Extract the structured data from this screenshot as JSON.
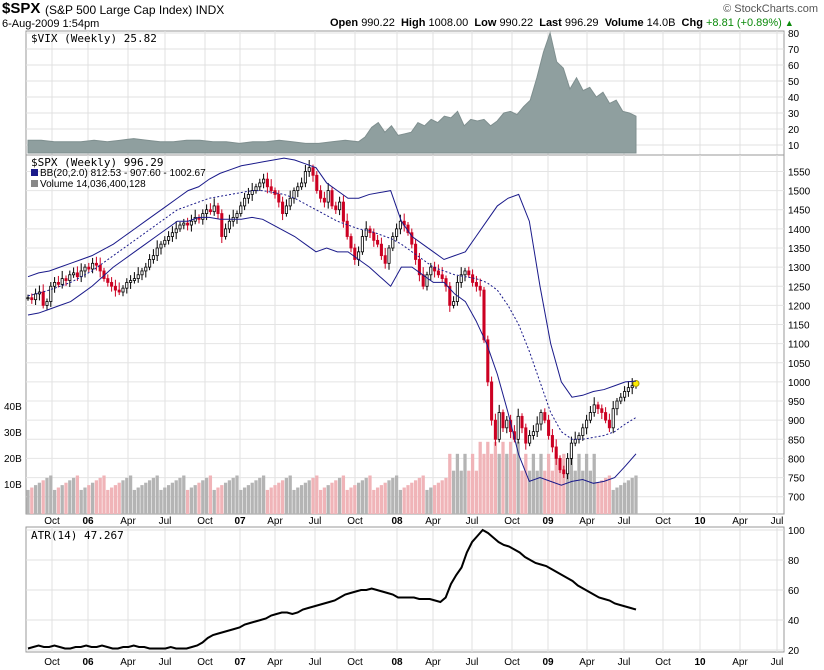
{
  "header": {
    "ticker": "$SPX",
    "name": "(S&P 500 Large Cap Index)",
    "exchange": "INDX",
    "datetime": "6-Aug-2009 1:54pm",
    "logo": "© StockCharts.com",
    "open_label": "Open",
    "open": "990.22",
    "high_label": "High",
    "high": "1008.00",
    "low_label": "Low",
    "low": "990.22",
    "last_label": "Last",
    "last": "996.29",
    "volume_label": "Volume",
    "volume": "14.0B",
    "chg_label": "Chg",
    "chg": "+8.81 (+0.89%)"
  },
  "legends": {
    "vix": "$VIX (Weekly) 25.82",
    "spx": "$SPX (Weekly) 996.29",
    "bb": "BB(20,2.0) 812.53 - 907.60 - 1002.67",
    "vol": "Volume 14,036,400,128",
    "atr": "ATR(14) 47.267"
  },
  "colors": {
    "vix_fill": "#8f9f9f",
    "up_candle": "#000000",
    "down_candle": "#cc0022",
    "bb_band": "#1a1a8a",
    "vol_up": "#b4b4b4",
    "vol_down": "#f0b4b8",
    "grid": "#d9d9d9"
  },
  "chart_data": [
    {
      "type": "area",
      "title": "$VIX (Weekly) 25.82",
      "ylim": [
        5,
        80
      ],
      "yticks": [
        10,
        20,
        30,
        40,
        50,
        60,
        70,
        80
      ],
      "x": [
        0,
        4,
        8,
        12,
        16,
        20,
        24,
        28,
        32,
        36,
        40,
        44,
        48,
        52,
        56,
        60,
        64,
        68,
        72,
        76,
        80,
        84,
        88,
        92,
        96,
        100,
        102,
        104,
        106,
        108,
        110,
        112,
        114,
        116,
        118,
        120,
        122,
        124,
        126,
        128,
        130,
        132,
        134,
        136,
        138,
        140,
        142,
        144,
        146,
        148,
        150,
        152,
        154,
        156,
        158,
        160,
        162,
        164,
        166,
        168,
        170,
        172,
        174,
        176,
        178,
        180,
        182,
        184
      ],
      "values": [
        13,
        13,
        12,
        12,
        12,
        13,
        12,
        13,
        14,
        13,
        12,
        12,
        13,
        13,
        12,
        12,
        11,
        12,
        12,
        13,
        12,
        11,
        11,
        12,
        13,
        12,
        15,
        21,
        24,
        18,
        22,
        16,
        17,
        18,
        24,
        22,
        26,
        24,
        28,
        27,
        31,
        22,
        26,
        25,
        26,
        22,
        25,
        30,
        31,
        29,
        34,
        38,
        52,
        68,
        80,
        62,
        58,
        45,
        52,
        44,
        46,
        40,
        43,
        36,
        38,
        31,
        30,
        28
      ]
    },
    {
      "type": "candlestick",
      "title": "$SPX (Weekly) 996.29",
      "ylim": [
        660,
        1580
      ],
      "yticks": [
        700,
        750,
        800,
        850,
        900,
        950,
        1000,
        1050,
        1100,
        1150,
        1200,
        1250,
        1300,
        1350,
        1400,
        1450,
        1500,
        1550
      ],
      "x_labels": [
        "Oct",
        "06",
        "Apr",
        "Jul",
        "Oct",
        "07",
        "Apr",
        "Jul",
        "Oct",
        "08",
        "Apr",
        "Jul",
        "Oct",
        "09",
        "Apr",
        "Jul",
        "Oct",
        "10",
        "Apr",
        "Jul"
      ],
      "closes": [
        1220,
        1215,
        1230,
        1235,
        1200,
        1210,
        1250,
        1260,
        1255,
        1270,
        1265,
        1280,
        1285,
        1275,
        1290,
        1300,
        1295,
        1310,
        1305,
        1290,
        1270,
        1260,
        1250,
        1240,
        1235,
        1245,
        1260,
        1265,
        1270,
        1280,
        1290,
        1300,
        1320,
        1330,
        1350,
        1360,
        1370,
        1380,
        1390,
        1400,
        1410,
        1415,
        1410,
        1420,
        1430,
        1425,
        1440,
        1450,
        1445,
        1460,
        1440,
        1380,
        1400,
        1420,
        1430,
        1440,
        1460,
        1480,
        1490,
        1500,
        1510,
        1520,
        1530,
        1510,
        1500,
        1490,
        1470,
        1440,
        1460,
        1480,
        1500,
        1510,
        1520,
        1550,
        1560,
        1540,
        1500,
        1480,
        1470,
        1500,
        1460,
        1450,
        1470,
        1420,
        1380,
        1350,
        1320,
        1340,
        1380,
        1400,
        1390,
        1370,
        1360,
        1330,
        1310,
        1350,
        1380,
        1400,
        1420,
        1410,
        1390,
        1360,
        1320,
        1280,
        1250,
        1280,
        1300,
        1290,
        1280,
        1270,
        1250,
        1200,
        1210,
        1260,
        1280,
        1290,
        1280,
        1260,
        1250,
        1240,
        1110,
        1000,
        900,
        850,
        920,
        880,
        900,
        870,
        850,
        910,
        880,
        840,
        860,
        870,
        890,
        920,
        900,
        860,
        830,
        800,
        770,
        760,
        800,
        840,
        850,
        860,
        880,
        900,
        920,
        940,
        930,
        920,
        900,
        880,
        930,
        950,
        960,
        975,
        985,
        990,
        996
      ],
      "bb_upper": [
        1275,
        1285,
        1290,
        1300,
        1310,
        1320,
        1330,
        1345,
        1360,
        1380,
        1400,
        1420,
        1440,
        1460,
        1480,
        1500,
        1510,
        1530,
        1545,
        1555,
        1565,
        1570,
        1575,
        1580,
        1585,
        1580,
        1570,
        1560,
        1520,
        1500,
        1480,
        1480,
        1490,
        1495,
        1500,
        1420,
        1380,
        1360,
        1340,
        1320,
        1330,
        1340,
        1380,
        1420,
        1460,
        1480,
        1490,
        1420,
        1250,
        1100,
        1000,
        960,
        965,
        975,
        980,
        990,
        1000,
        1002
      ],
      "bb_mid": [
        1225,
        1232,
        1240,
        1250,
        1260,
        1275,
        1290,
        1310,
        1330,
        1350,
        1370,
        1390,
        1410,
        1430,
        1450,
        1460,
        1470,
        1480,
        1485,
        1490,
        1495,
        1500,
        1500,
        1495,
        1490,
        1480,
        1465,
        1450,
        1435,
        1420,
        1410,
        1400,
        1395,
        1385,
        1375,
        1360,
        1340,
        1320,
        1300,
        1290,
        1280,
        1275,
        1270,
        1260,
        1240,
        1200,
        1150,
        1080,
        1000,
        920,
        870,
        850,
        850,
        855,
        860,
        870,
        890,
        907
      ],
      "bb_lower": [
        1175,
        1180,
        1190,
        1200,
        1210,
        1230,
        1250,
        1275,
        1300,
        1320,
        1340,
        1360,
        1380,
        1400,
        1420,
        1420,
        1430,
        1430,
        1425,
        1425,
        1425,
        1430,
        1425,
        1410,
        1395,
        1380,
        1360,
        1340,
        1350,
        1340,
        1340,
        1320,
        1300,
        1275,
        1250,
        1300,
        1300,
        1280,
        1260,
        1260,
        1230,
        1210,
        1160,
        1100,
        1020,
        920,
        810,
        740,
        750,
        740,
        730,
        740,
        745,
        735,
        740,
        750,
        780,
        812
      ],
      "volume_ylim": [
        0,
        45
      ],
      "volume_ticks": [
        "10B",
        "20B",
        "30B",
        "40B"
      ]
    },
    {
      "type": "line",
      "title": "ATR(14) 47.267",
      "ylim": [
        20,
        100
      ],
      "yticks": [
        20,
        40,
        60,
        80,
        100
      ],
      "values": [
        21,
        22,
        23,
        22,
        22,
        23,
        22,
        21,
        21,
        22,
        22,
        23,
        22,
        22,
        23,
        22,
        21,
        21,
        22,
        22,
        23,
        22,
        22,
        21,
        21,
        21,
        21,
        22,
        21,
        21,
        21,
        22,
        23,
        25,
        28,
        30,
        31,
        32,
        33,
        34,
        35,
        37,
        38,
        39,
        40,
        41,
        43,
        44,
        45,
        45,
        44,
        45,
        47,
        48,
        49,
        50,
        51,
        52,
        53,
        55,
        57,
        58,
        59,
        60,
        60,
        61,
        60,
        59,
        58,
        57,
        55,
        55,
        55,
        55,
        54,
        54,
        54,
        53,
        52,
        55,
        64,
        70,
        75,
        85,
        92,
        96,
        100,
        98,
        95,
        92,
        90,
        89,
        87,
        85,
        82,
        80,
        78,
        77,
        76,
        74,
        72,
        70,
        68,
        66,
        63,
        61,
        59,
        57,
        55,
        54,
        53,
        51,
        50,
        49,
        48,
        47
      ]
    }
  ]
}
